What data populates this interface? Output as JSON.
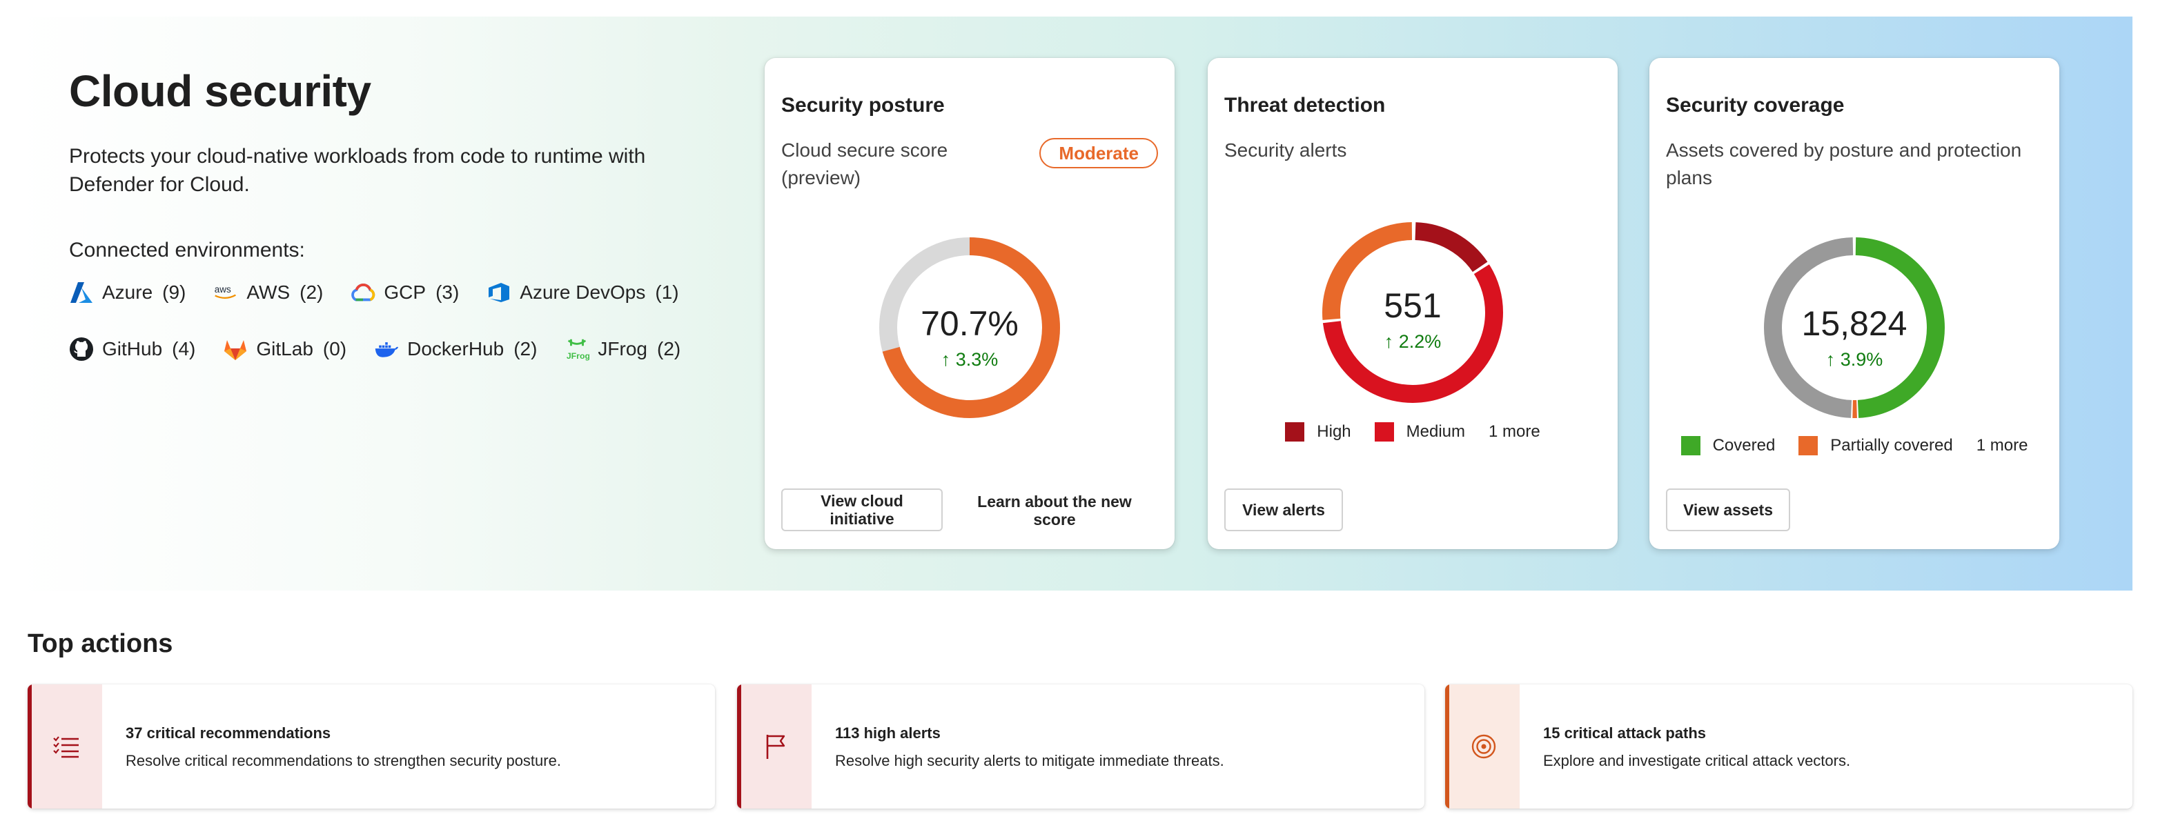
{
  "intro": {
    "title": "Cloud security",
    "subtitle_line1": "Protects your cloud-native workloads from code to runtime with",
    "subtitle_line2": "Defender for Cloud.",
    "environments_label": "Connected environments:"
  },
  "environments": [
    {
      "name": "Azure",
      "count": "(9)",
      "icon": "azure-icon"
    },
    {
      "name": "AWS",
      "count": "(2)",
      "icon": "aws-icon"
    },
    {
      "name": "GCP",
      "count": "(3)",
      "icon": "gcp-icon"
    },
    {
      "name": "Azure DevOps",
      "count": "(1)",
      "icon": "azure-devops-icon"
    },
    {
      "name": "GitHub",
      "count": "(4)",
      "icon": "github-icon"
    },
    {
      "name": "GitLab",
      "count": "(0)",
      "icon": "gitlab-icon"
    },
    {
      "name": "DockerHub",
      "count": "(2)",
      "icon": "dockerhub-icon"
    },
    {
      "name": "JFrog",
      "count": "(2)",
      "icon": "jfrog-icon"
    }
  ],
  "posture": {
    "title": "Security posture",
    "desc_line1": "Cloud secure score",
    "desc_line2": "(preview)",
    "badge": "Moderate",
    "value": "70.7%",
    "delta": "↑ 3.3%",
    "score_fraction": 0.707,
    "button1_line1": "View cloud",
    "button1_line2": "initiative",
    "button2_line1": "Learn about the new",
    "button2_line2": "score",
    "colors": {
      "filled": "#e8692a",
      "rest": "#d9d9d9"
    }
  },
  "threat": {
    "title": "Threat detection",
    "desc": "Security alerts",
    "value": "551",
    "delta": "↑ 2.2%",
    "legend": [
      {
        "label": "High",
        "color": "#a4111a"
      },
      {
        "label": "Medium",
        "color": "#d9121f"
      }
    ],
    "legend_more": "1 more",
    "button": "View alerts",
    "segment_colors": {
      "high": "#a4111a",
      "medium": "#d9121f",
      "low": "#e8692a"
    }
  },
  "coverage": {
    "title": "Security coverage",
    "desc_line1": "Assets covered by posture and protection",
    "desc_line2": "plans",
    "value": "15,824",
    "delta": "↑ 3.9%",
    "legend": [
      {
        "label": "Covered",
        "color": "#3fa927"
      },
      {
        "label": "Partially covered",
        "color": "#e8692a"
      }
    ],
    "legend_more": "1 more",
    "button": "View assets",
    "segment_colors": {
      "covered": "#3fa927",
      "partial": "#e8692a",
      "not_covered": "#999999"
    }
  },
  "top_actions": {
    "title": "Top actions",
    "items": [
      {
        "heading": "37 critical recommendations",
        "desc": "Resolve critical recommendations to strengthen security posture.",
        "icon": "list-icon",
        "accent": "#a4111a"
      },
      {
        "heading": "113 high alerts",
        "desc": "Resolve high security alerts to mitigate immediate threats.",
        "icon": "flag-icon",
        "accent": "#a4111a"
      },
      {
        "heading": "15 critical attack paths",
        "desc": "Explore and investigate critical attack vectors.",
        "icon": "target-icon",
        "accent": "#d2561d"
      }
    ]
  }
}
